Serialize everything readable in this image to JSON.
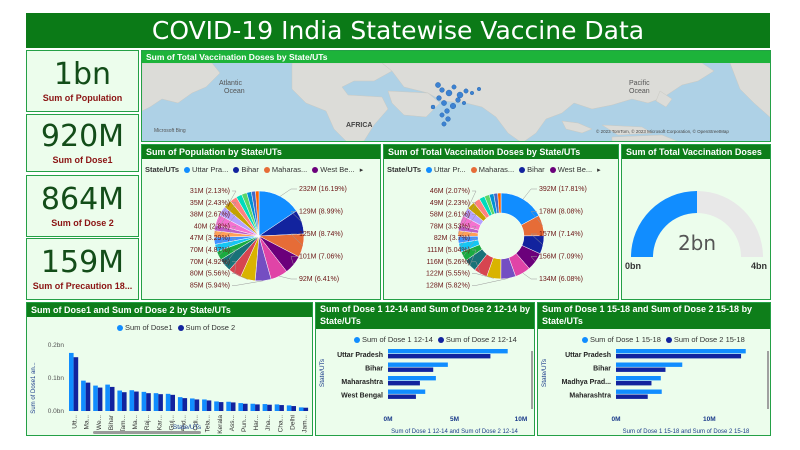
{
  "title": "COVID-19 India Statewise Vaccine Data",
  "kpis": [
    {
      "value": "1bn",
      "label": "Sum of Population"
    },
    {
      "value": "920M",
      "label": "Sum of Dose1"
    },
    {
      "value": "864M",
      "label": "Sum of Dose 2"
    },
    {
      "value": "159M",
      "label": "Sum of Precaution 18..."
    }
  ],
  "map": {
    "title": "Sum of Total Vaccination Doses by State/UTs",
    "labels": {
      "atlantic": "Atlantic\nOcean",
      "pacific": "Pacific\nOcean",
      "africa": "AFRICA"
    },
    "credits": "© 2023 TomTom, © 2023 Microsoft Corporation, © OpenStreetMap",
    "bing": "Microsoft Bing",
    "colors": {
      "land": "#dadada",
      "water": "#aed1e6",
      "bubble": "#3c82d2"
    }
  },
  "pie_population": {
    "title": "Sum of Population by State/UTs",
    "legend_title": "State/UTs",
    "legend": [
      "Uttar Pra...",
      "Bihar",
      "Maharas...",
      "West Be..."
    ],
    "legend_colors": [
      "#118dff",
      "#12239e",
      "#e66c37",
      "#6b007b"
    ],
    "left_labels": [
      "31M (2.13%)",
      "35M (2.43%)",
      "38M (2.67%)",
      "40M (2.8%)",
      "47M (3.29%)",
      "70M (4.87%)",
      "70M (4.92%)",
      "80M (5.56%)",
      "85M (5.94%)"
    ],
    "right_labels": [
      "232M (16.19%)",
      "129M (8.99%)",
      "125M (8.74%)",
      "101M (7.06%)",
      "92M (6.41%)"
    ]
  },
  "donut_doses": {
    "title": "Sum of Total Vaccination Doses by State/UTs",
    "legend_title": "State/UTs",
    "legend": [
      "Uttar Pr...",
      "Maharas...",
      "Bihar",
      "West Be..."
    ],
    "legend_colors": [
      "#118dff",
      "#e66c37",
      "#12239e",
      "#6b007b"
    ],
    "left_labels": [
      "46M (2.07%)",
      "49M (2.23%)",
      "58M (2.61%)",
      "78M (3.53%)",
      "82M (3.7%)",
      "111M (5.04%)",
      "116M (5.26%)",
      "122M (5.55%)",
      "128M (5.82%)"
    ],
    "right_labels": [
      "392M (17.81%)",
      "178M (8.08%)",
      "157M (7.14%)",
      "156M (7.09%)",
      "134M (6.08%)"
    ]
  },
  "gauge": {
    "title": "Sum of Total Vaccination Doses",
    "value_label": "2bn",
    "min_label": "0bn",
    "max_label": "4bn",
    "value": 2.2,
    "max": 4.4,
    "fill_color": "#118dff",
    "track_color": "#e8e8e8"
  },
  "dose_bars": {
    "title": "Sum of Dose1 and Sum of Dose 2 by State/UTs",
    "legend": [
      "Sum of Dose1",
      "Sum of Dose 2"
    ],
    "colors": [
      "#118dff",
      "#12239e"
    ],
    "ylabel": "Sum of Dose1 an...",
    "xlabel": "State/UTs",
    "y_ticks": [
      "0.2bn",
      "0.1bn",
      "0.0bn"
    ],
    "categories": [
      "Utt...",
      "Ma...",
      "We...",
      "Bihar",
      "Tam...",
      "Ma...",
      "Raj...",
      "Kar...",
      "Guj...",
      "And...",
      "Odi...",
      "Tela...",
      "Kerala",
      "Ass...",
      "Pun...",
      "Har...",
      "Jha...",
      "Cha...",
      "Delhi",
      "Jam..."
    ]
  },
  "dose12_bars": {
    "title": "Sum of Dose 1 12-14 and Sum of Dose 2 12-14 by State/UTs",
    "legend": [
      "Sum of Dose 1 12-14",
      "Sum of Dose 2 12-14"
    ],
    "colors": [
      "#118dff",
      "#12239e"
    ],
    "categories": [
      "Uttar Pradesh",
      "Bihar",
      "Maharashtra",
      "West Bengal"
    ],
    "x_ticks": [
      "0M",
      "5M",
      "10M"
    ],
    "ylabel": "State/UTs",
    "xlabel": "Sum of Dose 1 12-14 and Sum of Dose 2 12-14"
  },
  "dose15_bars": {
    "title": "Sum of Dose 1 15-18 and Sum of Dose 2 15-18 by State/UTs",
    "legend": [
      "Sum of Dose 1 15-18",
      "Sum of Dose 2 15-18"
    ],
    "colors": [
      "#118dff",
      "#12239e"
    ],
    "categories": [
      "Uttar Pradesh",
      "Bihar",
      "Madhya Prad...",
      "Maharashtra"
    ],
    "x_ticks": [
      "0M",
      "10M"
    ],
    "ylabel": "State/UTs",
    "xlabel": "Sum of Dose 1 15-18 and Sum of Dose 2 15-18"
  },
  "chart_data": [
    {
      "type": "pie",
      "title": "Sum of Population by State/UTs",
      "categories": [
        "Uttar Pradesh",
        "Bihar",
        "Maharashtra",
        "West Bengal"
      ],
      "values_millions": [
        232,
        129,
        125,
        101,
        92,
        85,
        80,
        70,
        70,
        47,
        40,
        38,
        35,
        31
      ],
      "percents": [
        16.19,
        8.99,
        8.74,
        7.06,
        6.41,
        5.94,
        5.56,
        4.92,
        4.87,
        3.29,
        2.8,
        2.67,
        2.43,
        2.13
      ],
      "colors": [
        "#118dff",
        "#12239e",
        "#e66c37",
        "#6b007b",
        "#e044a7",
        "#744ec2",
        "#d9b300",
        "#d64550",
        "#197278",
        "#1aab40",
        "#15c6f4",
        "#4092ff",
        "#ffa058",
        "#be5dc9",
        "#f472d0",
        "#b5a1ff",
        "#c4a200",
        "#ff8080",
        "#00dbbc",
        "#5bd667",
        "#0091d5",
        "#4668c5",
        "#ff6300",
        "#99008a"
      ]
    },
    {
      "type": "pie",
      "title": "Sum of Total Vaccination Doses by State/UTs",
      "categories": [
        "Uttar Pradesh",
        "Maharashtra",
        "Bihar",
        "West Bengal"
      ],
      "values_millions": [
        392,
        178,
        157,
        156,
        134,
        128,
        122,
        116,
        111,
        82,
        78,
        58,
        49,
        46
      ],
      "percents": [
        17.81,
        8.08,
        7.14,
        7.09,
        6.08,
        5.82,
        5.55,
        5.26,
        5.04,
        3.7,
        3.53,
        2.61,
        2.23,
        2.07
      ],
      "colors": [
        "#118dff",
        "#e66c37",
        "#12239e",
        "#6b007b",
        "#e044a7",
        "#744ec2",
        "#d9b300",
        "#d64550",
        "#197278",
        "#1aab40",
        "#15c6f4",
        "#4092ff",
        "#ffa058",
        "#be5dc9",
        "#f472d0",
        "#b5a1ff",
        "#c4a200",
        "#ff8080",
        "#00dbbc",
        "#5bd667",
        "#0091d5",
        "#4668c5",
        "#ff6300",
        "#99008a"
      ]
    },
    {
      "type": "bar",
      "title": "Sum of Dose1 and Sum of Dose 2 by State/UTs",
      "categories": [
        "Utt...",
        "Ma...",
        "We...",
        "Bihar",
        "Tam...",
        "Ma...",
        "Raj...",
        "Kar...",
        "Guj...",
        "And...",
        "Odi...",
        "Tela...",
        "Kerala",
        "Ass...",
        "Pun...",
        "Har...",
        "Jha...",
        "Cha...",
        "Delhi",
        "Jam..."
      ],
      "series": [
        {
          "name": "Sum of Dose1",
          "values": [
            0.176,
            0.092,
            0.077,
            0.08,
            0.062,
            0.063,
            0.058,
            0.054,
            0.052,
            0.042,
            0.038,
            0.035,
            0.029,
            0.028,
            0.024,
            0.022,
            0.021,
            0.02,
            0.017,
            0.011
          ]
        },
        {
          "name": "Sum of Dose 2",
          "values": [
            0.163,
            0.086,
            0.071,
            0.073,
            0.057,
            0.059,
            0.054,
            0.051,
            0.049,
            0.039,
            0.035,
            0.032,
            0.027,
            0.026,
            0.022,
            0.02,
            0.019,
            0.018,
            0.015,
            0.01
          ]
        }
      ],
      "ylim": [
        0,
        0.2
      ],
      "ylabel": "Sum of Dose1 an...",
      "xlabel": "State/UTs"
    },
    {
      "type": "bar",
      "orientation": "horizontal",
      "title": "Sum of Dose 1 12-14 and Sum of Dose 2 12-14 by State/UTs",
      "categories": [
        "Uttar Pradesh",
        "Bihar",
        "Maharashtra",
        "West Bengal"
      ],
      "series": [
        {
          "name": "Sum of Dose 1 12-14",
          "values": [
            9.0,
            4.5,
            3.6,
            2.8
          ]
        },
        {
          "name": "Sum of Dose 2 12-14",
          "values": [
            7.7,
            3.4,
            2.4,
            2.1
          ]
        }
      ],
      "xlim": [
        0,
        10
      ]
    },
    {
      "type": "bar",
      "orientation": "horizontal",
      "title": "Sum of Dose 1 15-18 and Sum of Dose 2 15-18 by State/UTs",
      "categories": [
        "Uttar Pradesh",
        "Bihar",
        "Madhya Prad...",
        "Maharashtra"
      ],
      "series": [
        {
          "name": "Sum of Dose 1 15-18",
          "values": [
            13.9,
            7.1,
            4.8,
            4.9
          ]
        },
        {
          "name": "Sum of Dose 2 15-18",
          "values": [
            13.4,
            5.3,
            3.8,
            3.4
          ]
        }
      ],
      "xlim": [
        0,
        15
      ]
    }
  ]
}
